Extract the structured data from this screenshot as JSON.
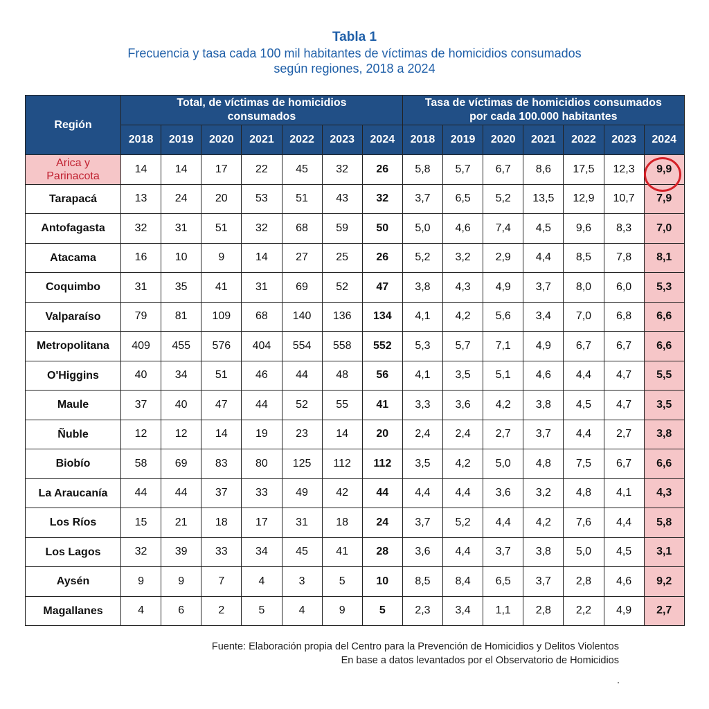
{
  "title": "Tabla 1",
  "subtitle_line1": "Frecuencia y tasa cada 100 mil habitantes de víctimas de homicidios consumados",
  "subtitle_line2": "según regiones, 2018 a 2024",
  "header": {
    "region": "Región",
    "group_total_line1": "Total, de víctimas de homicidios",
    "group_total_line2": "consumados",
    "group_rate_line1": "Tasa de víctimas de homicidios consumados",
    "group_rate_line2": "por cada 100.000 habitantes",
    "years": [
      "2018",
      "2019",
      "2020",
      "2021",
      "2022",
      "2023",
      "2024"
    ]
  },
  "colors": {
    "header_bg": "#214f86",
    "highlight_bg": "#f6c6c8",
    "title": "#1f5fa8",
    "circle": "#d42027"
  },
  "rows": [
    {
      "region": "Arica y\nParinacota",
      "totals": [
        "14",
        "14",
        "17",
        "22",
        "45",
        "32",
        "26"
      ],
      "rates": [
        "5,8",
        "5,7",
        "6,7",
        "8,6",
        "17,5",
        "12,3",
        "9,9"
      ]
    },
    {
      "region": "Tarapacá",
      "totals": [
        "13",
        "24",
        "20",
        "53",
        "51",
        "43",
        "32"
      ],
      "rates": [
        "3,7",
        "6,5",
        "5,2",
        "13,5",
        "12,9",
        "10,7",
        "7,9"
      ]
    },
    {
      "region": "Antofagasta",
      "totals": [
        "32",
        "31",
        "51",
        "32",
        "68",
        "59",
        "50"
      ],
      "rates": [
        "5,0",
        "4,6",
        "7,4",
        "4,5",
        "9,6",
        "8,3",
        "7,0"
      ]
    },
    {
      "region": "Atacama",
      "totals": [
        "16",
        "10",
        "9",
        "14",
        "27",
        "25",
        "26"
      ],
      "rates": [
        "5,2",
        "3,2",
        "2,9",
        "4,4",
        "8,5",
        "7,8",
        "8,1"
      ]
    },
    {
      "region": "Coquimbo",
      "totals": [
        "31",
        "35",
        "41",
        "31",
        "69",
        "52",
        "47"
      ],
      "rates": [
        "3,8",
        "4,3",
        "4,9",
        "3,7",
        "8,0",
        "6,0",
        "5,3"
      ]
    },
    {
      "region": "Valparaíso",
      "totals": [
        "79",
        "81",
        "109",
        "68",
        "140",
        "136",
        "134"
      ],
      "rates": [
        "4,1",
        "4,2",
        "5,6",
        "3,4",
        "7,0",
        "6,8",
        "6,6"
      ]
    },
    {
      "region": "Metropolitana",
      "totals": [
        "409",
        "455",
        "576",
        "404",
        "554",
        "558",
        "552"
      ],
      "rates": [
        "5,3",
        "5,7",
        "7,1",
        "4,9",
        "6,7",
        "6,7",
        "6,6"
      ]
    },
    {
      "region": "O'Higgins",
      "totals": [
        "40",
        "34",
        "51",
        "46",
        "44",
        "48",
        "56"
      ],
      "rates": [
        "4,1",
        "3,5",
        "5,1",
        "4,6",
        "4,4",
        "4,7",
        "5,5"
      ]
    },
    {
      "region": "Maule",
      "totals": [
        "37",
        "40",
        "47",
        "44",
        "52",
        "55",
        "41"
      ],
      "rates": [
        "3,3",
        "3,6",
        "4,2",
        "3,8",
        "4,5",
        "4,7",
        "3,5"
      ]
    },
    {
      "region": "Ñuble",
      "totals": [
        "12",
        "12",
        "14",
        "19",
        "23",
        "14",
        "20"
      ],
      "rates": [
        "2,4",
        "2,4",
        "2,7",
        "3,7",
        "4,4",
        "2,7",
        "3,8"
      ]
    },
    {
      "region": "Biobío",
      "totals": [
        "58",
        "69",
        "83",
        "80",
        "125",
        "112",
        "112"
      ],
      "rates": [
        "3,5",
        "4,2",
        "5,0",
        "4,8",
        "7,5",
        "6,7",
        "6,6"
      ]
    },
    {
      "region": "La Araucanía",
      "totals": [
        "44",
        "44",
        "37",
        "33",
        "49",
        "42",
        "44"
      ],
      "rates": [
        "4,4",
        "4,4",
        "3,6",
        "3,2",
        "4,8",
        "4,1",
        "4,3"
      ]
    },
    {
      "region": "Los Ríos",
      "totals": [
        "15",
        "21",
        "18",
        "17",
        "31",
        "18",
        "24"
      ],
      "rates": [
        "3,7",
        "5,2",
        "4,4",
        "4,2",
        "7,6",
        "4,4",
        "5,8"
      ]
    },
    {
      "region": "Los Lagos",
      "totals": [
        "32",
        "39",
        "33",
        "34",
        "45",
        "41",
        "28"
      ],
      "rates": [
        "3,6",
        "4,4",
        "3,7",
        "3,8",
        "5,0",
        "4,5",
        "3,1"
      ]
    },
    {
      "region": "Aysén",
      "totals": [
        "9",
        "9",
        "7",
        "4",
        "3",
        "5",
        "10"
      ],
      "rates": [
        "8,5",
        "8,4",
        "6,5",
        "3,7",
        "2,8",
        "4,6",
        "9,2"
      ]
    },
    {
      "region": "Magallanes",
      "totals": [
        "4",
        "6",
        "2",
        "5",
        "4",
        "9",
        "5"
      ],
      "rates": [
        "2,3",
        "3,4",
        "1,1",
        "2,8",
        "2,2",
        "4,9",
        "2,7"
      ]
    }
  ],
  "footer_line1": "Fuente: Elaboración propia del Centro para la Prevención de Homicidios y Delitos Violentos",
  "footer_line2": "En base a datos levantados por el Observatorio de Homicidios"
}
